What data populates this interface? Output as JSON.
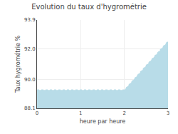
{
  "chart_data": {
    "type": "area",
    "title": "Evolution du taux d'hygrométrie",
    "x_label": "heure par heure",
    "y_label": "Taux hygrométrie %",
    "x": [
      0,
      2,
      3
    ],
    "values": [
      89.3,
      89.3,
      92.5
    ],
    "color": "#b8dce8",
    "line_style": "dotted",
    "xlim": [
      0,
      3
    ],
    "xticks": [
      0,
      1,
      2,
      3
    ],
    "ylim": [
      88.1,
      93.9
    ],
    "yticks": [
      88.1,
      {
        "value": 90.0,
        "label": "90.0"
      },
      {
        "value": 92.0,
        "label": "92.0"
      },
      93.9
    ],
    "grid": true
  }
}
